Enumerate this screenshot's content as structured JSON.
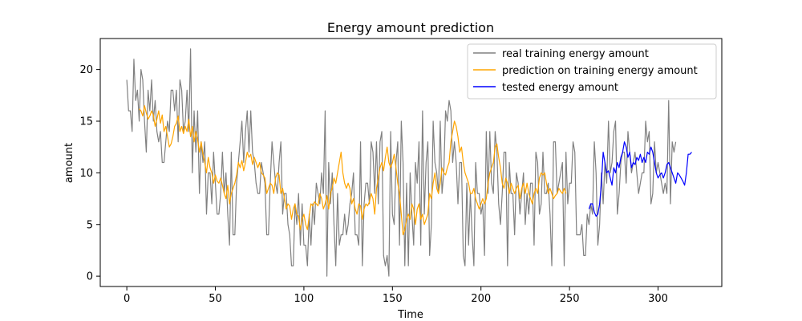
{
  "chart_data": {
    "type": "line",
    "title": "Energy amount prediction",
    "xlabel": "Time",
    "ylabel": "amount",
    "xlim": [
      -15,
      336
    ],
    "ylim": [
      -1,
      23
    ],
    "xticks": [
      0,
      50,
      100,
      150,
      200,
      250,
      300
    ],
    "yticks": [
      0,
      5,
      10,
      15,
      20
    ],
    "grid": false,
    "legend_position": "top-right",
    "series": [
      {
        "name": "real training energy amount",
        "color": "#808080",
        "x_start": 0,
        "values": [
          19,
          16,
          16,
          14,
          21,
          17,
          18,
          15,
          20,
          19,
          15,
          12,
          18,
          16,
          19,
          15,
          17,
          14,
          13,
          14,
          11,
          11,
          13,
          15,
          14,
          18,
          18,
          16,
          18,
          13,
          19,
          18,
          14,
          15,
          18,
          14,
          22,
          10,
          16,
          12,
          16,
          8,
          13,
          11,
          13,
          6,
          10,
          10,
          7,
          12,
          9,
          6,
          6,
          8,
          12,
          8,
          10,
          6,
          3,
          12,
          4,
          4,
          9,
          11,
          13,
          15,
          11,
          14,
          16,
          12,
          16,
          12,
          11,
          9,
          8,
          8,
          11,
          10,
          9,
          4,
          4,
          9,
          13,
          11,
          9,
          8,
          11,
          13,
          6,
          8,
          8,
          5,
          4,
          1,
          1,
          7,
          5,
          8,
          3,
          7,
          3,
          3,
          1,
          6,
          3,
          7,
          5,
          9,
          8,
          7,
          10,
          8,
          16,
          0,
          11,
          7,
          10,
          5,
          1,
          8,
          3,
          4,
          4,
          6,
          4,
          5,
          7,
          8,
          10,
          4,
          4,
          3,
          13,
          1,
          7,
          9,
          9,
          7,
          13,
          12,
          8,
          13,
          7,
          13,
          14,
          2,
          1,
          2,
          0,
          14,
          6,
          5,
          11,
          13,
          3,
          15,
          11,
          1,
          9,
          1,
          10,
          6,
          3,
          11,
          9,
          13,
          3,
          16,
          6,
          11,
          13,
          2,
          5,
          15,
          11,
          10,
          8,
          15,
          8,
          10,
          16,
          15,
          17,
          16,
          11,
          13,
          11,
          7,
          11,
          11,
          2,
          1,
          9,
          3,
          8,
          4,
          1,
          11,
          8,
          8,
          6,
          7,
          2,
          14,
          8,
          14,
          9,
          8,
          14,
          12,
          7,
          5,
          8,
          12,
          12,
          1,
          11,
          8,
          8,
          4,
          10,
          9,
          6,
          8,
          10,
          5,
          8,
          6,
          9,
          9,
          3,
          12,
          11,
          6,
          7,
          12,
          8,
          8,
          9,
          6,
          1,
          13,
          13,
          8,
          9,
          10,
          11,
          1,
          12,
          7,
          9,
          9,
          13,
          12,
          4,
          4,
          4,
          5,
          2,
          2,
          6,
          5,
          7,
          6,
          13,
          10,
          3,
          5,
          10,
          7,
          11,
          9,
          15,
          10,
          11,
          14,
          15,
          6,
          8,
          11,
          12,
          12,
          9,
          14,
          12,
          10,
          11,
          12,
          10,
          8,
          9,
          10,
          10,
          15,
          13,
          14,
          7,
          8,
          13,
          10,
          11,
          10,
          9,
          8,
          9,
          8,
          17,
          7,
          13,
          12,
          13
        ]
      },
      {
        "name": "prediction on training energy amount",
        "color": "#ffa500",
        "x_start": 7,
        "values": [
          16.2,
          16.0,
          15.5,
          16.5,
          15.8,
          15.2,
          15.5,
          16.0,
          15.6,
          14.5,
          15.2,
          16.0,
          14.8,
          15.6,
          14.0,
          14.5,
          13.5,
          12.5,
          12.8,
          13.5,
          14.5,
          14.8,
          15.5,
          14.0,
          14.5,
          13.8,
          14.5,
          14.0,
          15.2,
          13.5,
          14.5,
          13.0,
          14.0,
          13.2,
          12.0,
          13.0,
          11.8,
          11.0,
          10.0,
          11.5,
          10.5,
          10.0,
          9.0,
          9.8,
          9.2,
          9.0,
          9.5,
          8.8,
          8.0,
          7.5,
          8.8,
          7.0,
          8.0,
          8.5,
          9.0,
          9.8,
          11.0,
          10.5,
          11.2,
          10.2,
          11.0,
          12.0,
          11.5,
          11.8,
          10.8,
          11.5,
          11.0,
          10.5,
          11.0,
          10.0,
          9.8,
          9.5,
          8.0,
          8.5,
          9.0,
          8.8,
          8.0,
          9.5,
          10.0,
          9.8,
          8.0,
          8.5,
          7.5,
          6.5,
          7.0,
          6.8,
          5.5,
          6.5,
          7.0,
          6.0,
          5.8,
          4.5,
          5.5,
          6.0,
          5.0,
          4.5,
          5.8,
          7.0,
          6.8,
          7.2,
          7.0,
          6.8,
          8.0,
          7.5,
          6.5,
          7.0,
          7.8,
          6.5,
          8.0,
          8.5,
          9.5,
          9.0,
          10.0,
          11.0,
          12.0,
          10.0,
          9.0,
          8.5,
          9.0,
          8.5,
          7.0,
          7.5,
          6.5,
          6.0,
          7.0,
          6.8,
          5.5,
          6.5,
          7.0,
          6.8,
          7.2,
          8.0,
          7.5,
          6.0,
          8.5,
          9.5,
          10.5,
          11.0,
          10.2,
          11.5,
          12.5,
          11.0,
          10.5,
          11.0,
          11.8,
          10.5,
          9.0,
          8.0,
          6.0,
          4.0,
          4.5,
          5.5,
          6.0,
          5.5,
          7.0,
          6.5,
          5.0,
          6.5,
          7.0,
          5.5,
          6.0,
          5.0,
          5.5,
          6.0,
          8.0,
          7.5,
          9.0,
          10.0,
          8.5,
          8.0,
          9.0,
          10.5,
          10.0,
          9.8,
          10.5,
          11.0,
          13.0,
          14.0,
          15.0,
          14.5,
          13.5,
          12.0,
          12.5,
          11.0,
          10.0,
          9.5,
          9.0,
          8.0,
          8.0,
          8.5,
          7.5,
          7.0,
          6.5,
          7.0,
          7.5,
          7.0,
          7.5,
          9.0,
          10.0,
          10.5,
          11.0,
          12.5,
          12.8,
          11.5,
          10.5,
          9.0,
          8.5,
          9.5,
          9.0,
          8.0,
          9.0,
          8.5,
          8.0,
          8.5,
          8.8,
          7.5,
          8.5,
          9.0,
          8.0,
          9.0,
          8.0,
          7.5,
          7.0,
          8.0,
          8.5,
          8.0,
          9.5,
          10.0,
          9.8,
          10.0,
          9.0,
          8.0,
          8.5,
          8.0,
          7.5,
          7.8,
          8.0,
          8.5,
          8.2,
          8.0,
          8.5,
          8.0
        ]
      },
      {
        "name": "tested energy amount",
        "color": "#0000ff",
        "x_start": 261,
        "values": [
          6.5,
          7.0,
          7.0,
          6.2,
          5.8,
          6.0,
          7.0,
          9.0,
          12.0,
          11.0,
          10.0,
          10.2,
          9.5,
          8.8,
          10.5,
          10.0,
          11.0,
          10.5,
          11.5,
          12.0,
          13.0,
          12.5,
          11.5,
          12.0,
          10.5,
          11.0,
          10.8,
          11.5,
          11.2,
          11.8,
          11.0,
          11.5,
          11.0,
          12.0,
          11.8,
          12.5,
          12.0,
          11.0,
          10.0,
          9.5,
          9.8,
          10.0,
          9.5,
          10.0,
          10.8,
          11.0,
          10.5,
          10.0,
          9.5,
          9.0,
          10.0,
          9.8,
          9.5,
          9.2,
          8.8,
          10.0,
          11.8,
          11.8,
          12.0
        ]
      }
    ]
  }
}
